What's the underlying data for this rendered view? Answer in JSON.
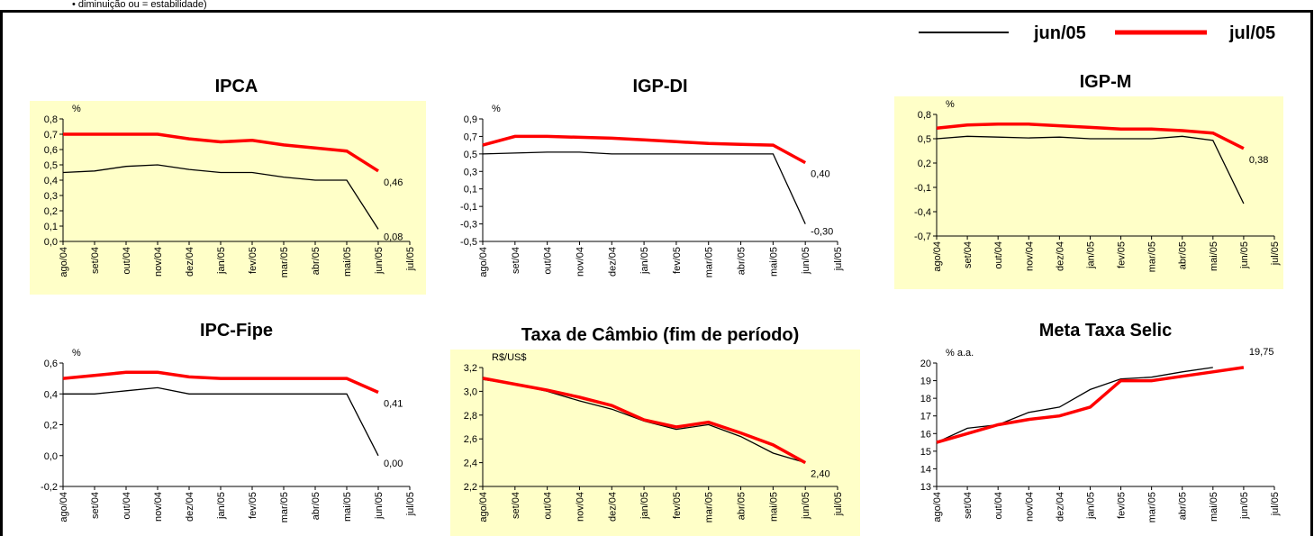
{
  "note": "• diminuição ou = estabilidade)",
  "chart_data": [
    {
      "type": "line",
      "title": "IPCA",
      "y_label": "%",
      "background": "#ffffc8",
      "categories": [
        "ago/04",
        "set/04",
        "out/04",
        "nov/04",
        "dez/04",
        "jan/05",
        "fev/05",
        "mar/05",
        "abr/05",
        "mai/05",
        "jun/05",
        "jul/05"
      ],
      "series": [
        {
          "name": "jun/05",
          "color": "#000000",
          "values": [
            0.45,
            0.46,
            0.49,
            0.5,
            0.47,
            0.45,
            0.45,
            0.42,
            0.4,
            0.4,
            0.08,
            null
          ],
          "value_labels": [
            null,
            null,
            null,
            null,
            null,
            null,
            null,
            null,
            null,
            null,
            "0,08",
            null
          ]
        },
        {
          "name": "jul/05",
          "color": "#ff0000",
          "values": [
            0.7,
            0.7,
            0.7,
            0.7,
            0.67,
            0.65,
            0.66,
            0.63,
            0.61,
            0.59,
            0.46,
            null
          ],
          "value_labels": [
            null,
            null,
            null,
            null,
            null,
            null,
            null,
            null,
            null,
            null,
            "0,46",
            null
          ]
        }
      ],
      "ylim": [
        0,
        0.8
      ],
      "yticks": [
        {
          "value": 0,
          "label": "0,0"
        },
        {
          "value": 0.1,
          "label": "0,1"
        },
        {
          "value": 0.2,
          "label": "0,2"
        },
        {
          "value": 0.3,
          "label": "0,3"
        },
        {
          "value": 0.4,
          "label": "0,4"
        },
        {
          "value": 0.5,
          "label": "0,5"
        },
        {
          "value": 0.6,
          "label": "0,6"
        },
        {
          "value": 0.7,
          "label": "0,7"
        },
        {
          "value": 0.8,
          "label": "0,8"
        }
      ]
    },
    {
      "type": "line",
      "title": "IGP-DI",
      "y_label": "%",
      "background": "#ffffff",
      "categories": [
        "ago/04",
        "set/04",
        "out/04",
        "nov/04",
        "dez/04",
        "jan/05",
        "fev/05",
        "mar/05",
        "abr/05",
        "mai/05",
        "jun/05",
        "jul/05"
      ],
      "series": [
        {
          "name": "jun/05",
          "color": "#000000",
          "values": [
            0.5,
            0.51,
            0.52,
            0.52,
            0.5,
            0.5,
            0.5,
            0.5,
            0.5,
            0.5,
            -0.3,
            null
          ],
          "value_labels": [
            null,
            null,
            null,
            null,
            null,
            null,
            null,
            null,
            null,
            null,
            "-0,30",
            null
          ]
        },
        {
          "name": "jul/05",
          "color": "#ff0000",
          "values": [
            0.6,
            0.7,
            0.7,
            0.69,
            0.68,
            0.66,
            0.64,
            0.62,
            0.61,
            0.6,
            0.4,
            null
          ],
          "value_labels": [
            null,
            null,
            null,
            null,
            null,
            null,
            null,
            null,
            null,
            null,
            "0,40",
            null
          ]
        }
      ],
      "ylim": [
        -0.5,
        0.9
      ],
      "yticks": [
        {
          "value": -0.5,
          "label": "-0,5"
        },
        {
          "value": -0.3,
          "label": "-0,3"
        },
        {
          "value": -0.1,
          "label": "-0,1"
        },
        {
          "value": 0.1,
          "label": "0,1"
        },
        {
          "value": 0.3,
          "label": "0,3"
        },
        {
          "value": 0.5,
          "label": "0,5"
        },
        {
          "value": 0.7,
          "label": "0,7"
        },
        {
          "value": 0.9,
          "label": "0,9"
        }
      ]
    },
    {
      "type": "line",
      "title": "IGP-M",
      "y_label": "%",
      "background": "#ffffc8",
      "categories": [
        "ago/04",
        "set/04",
        "out/04",
        "nov/04",
        "dez/04",
        "jan/05",
        "fev/05",
        "mar/05",
        "abr/05",
        "mai/05",
        "jun/05",
        "jul/05"
      ],
      "series": [
        {
          "name": "jun/05",
          "color": "#000000",
          "values": [
            0.5,
            0.53,
            0.52,
            0.51,
            0.52,
            0.5,
            0.5,
            0.5,
            0.53,
            0.48,
            -0.3,
            null
          ],
          "value_labels": [
            null,
            null,
            null,
            null,
            null,
            null,
            null,
            null,
            null,
            null,
            null,
            null
          ]
        },
        {
          "name": "jul/05",
          "color": "#ff0000",
          "values": [
            0.63,
            0.67,
            0.68,
            0.68,
            0.66,
            0.64,
            0.62,
            0.62,
            0.6,
            0.57,
            0.38,
            null
          ],
          "value_labels": [
            null,
            null,
            null,
            null,
            null,
            null,
            null,
            null,
            null,
            null,
            "0,38",
            null
          ]
        }
      ],
      "ylim": [
        -0.7,
        0.8
      ],
      "yticks": [
        {
          "value": -0.7,
          "label": "-0,7"
        },
        {
          "value": -0.4,
          "label": "-0,4"
        },
        {
          "value": -0.1,
          "label": "-0,1"
        },
        {
          "value": 0.2,
          "label": "0,2"
        },
        {
          "value": 0.5,
          "label": "0,5"
        },
        {
          "value": 0.8,
          "label": "0,8"
        }
      ]
    },
    {
      "type": "line",
      "title": "IPC-Fipe",
      "y_label": "%",
      "background": "#ffffff",
      "categories": [
        "ago/04",
        "set/04",
        "out/04",
        "nov/04",
        "dez/04",
        "jan/05",
        "fev/05",
        "mar/05",
        "abr/05",
        "mai/05",
        "jun/05",
        "jul/05"
      ],
      "series": [
        {
          "name": "jun/05",
          "color": "#000000",
          "values": [
            0.4,
            0.4,
            0.42,
            0.44,
            0.4,
            0.4,
            0.4,
            0.4,
            0.4,
            0.4,
            0.0,
            null
          ],
          "value_labels": [
            null,
            null,
            null,
            null,
            null,
            null,
            null,
            null,
            null,
            null,
            "0,00",
            null
          ]
        },
        {
          "name": "jul/05",
          "color": "#ff0000",
          "values": [
            0.5,
            0.52,
            0.54,
            0.54,
            0.51,
            0.5,
            0.5,
            0.5,
            0.5,
            0.5,
            0.41,
            null
          ],
          "value_labels": [
            null,
            null,
            null,
            null,
            null,
            null,
            null,
            null,
            null,
            null,
            "0,41",
            null
          ]
        }
      ],
      "ylim": [
        -0.2,
        0.6
      ],
      "yticks": [
        {
          "value": -0.2,
          "label": "-0,2"
        },
        {
          "value": 0,
          "label": "0,0"
        },
        {
          "value": 0.2,
          "label": "0,2"
        },
        {
          "value": 0.4,
          "label": "0,4"
        },
        {
          "value": 0.6,
          "label": "0,6"
        }
      ]
    },
    {
      "type": "line",
      "title": "Taxa de Câmbio (fim de período)",
      "y_label": "R$/US$",
      "background": "#ffffc8",
      "categories": [
        "ago/04",
        "set/04",
        "out/04",
        "nov/04",
        "dez/04",
        "jan/05",
        "fev/05",
        "mar/05",
        "abr/05",
        "mai/05",
        "jun/05",
        "jul/05"
      ],
      "series": [
        {
          "name": "jun/05",
          "color": "#000000",
          "values": [
            3.1,
            3.06,
            3.0,
            2.92,
            2.85,
            2.75,
            2.68,
            2.72,
            2.62,
            2.48,
            2.4,
            null
          ],
          "value_labels": [
            null,
            null,
            null,
            null,
            null,
            null,
            null,
            null,
            null,
            null,
            null,
            null
          ]
        },
        {
          "name": "jul/05",
          "color": "#ff0000",
          "values": [
            3.11,
            3.06,
            3.01,
            2.95,
            2.88,
            2.76,
            2.7,
            2.74,
            2.65,
            2.55,
            2.4,
            null
          ],
          "value_labels": [
            null,
            null,
            null,
            null,
            null,
            null,
            null,
            null,
            null,
            null,
            "2,40",
            null
          ]
        }
      ],
      "ylim": [
        2.2,
        3.2
      ],
      "yticks": [
        {
          "value": 2.2,
          "label": "2,2"
        },
        {
          "value": 2.4,
          "label": "2,4"
        },
        {
          "value": 2.6,
          "label": "2,6"
        },
        {
          "value": 2.8,
          "label": "2,8"
        },
        {
          "value": 3.0,
          "label": "3,0"
        },
        {
          "value": 3.2,
          "label": "3,2"
        }
      ]
    },
    {
      "type": "line",
      "title": "Meta Taxa Selic",
      "y_label": "% a.a.",
      "background": "#ffffff",
      "categories": [
        "ago/04",
        "set/04",
        "out/04",
        "nov/04",
        "dez/04",
        "jan/05",
        "fev/05",
        "mar/05",
        "abr/05",
        "mai/05",
        "jun/05",
        "jul/05"
      ],
      "series": [
        {
          "name": "jun/05",
          "color": "#000000",
          "values": [
            15.5,
            16.3,
            16.5,
            17.2,
            17.5,
            18.5,
            19.1,
            19.2,
            19.5,
            19.75,
            null,
            null
          ],
          "value_labels": [
            null,
            null,
            null,
            null,
            null,
            null,
            null,
            null,
            null,
            null,
            null,
            null
          ]
        },
        {
          "name": "jul/05",
          "color": "#ff0000",
          "values": [
            15.5,
            16.0,
            16.5,
            16.8,
            17.0,
            17.5,
            19.0,
            19.0,
            19.25,
            19.5,
            19.75,
            null
          ],
          "value_labels": [
            null,
            null,
            null,
            null,
            null,
            null,
            null,
            null,
            null,
            null,
            "19,75",
            null
          ]
        }
      ],
      "ylim": [
        13,
        20
      ],
      "yticks": [
        13,
        14,
        15,
        16,
        17,
        18,
        19,
        20
      ]
    }
  ]
}
